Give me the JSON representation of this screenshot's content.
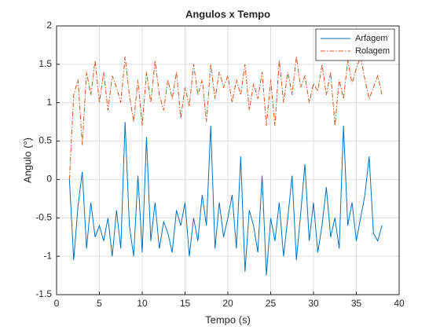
{
  "chart_data": {
    "type": "line",
    "title": "Angulos x Tempo",
    "x_label": "Tempo (s)",
    "y_label": "Angulo (°)",
    "x": [
      1.5,
      2,
      2.5,
      3,
      3.5,
      4,
      4.5,
      5,
      5.5,
      6,
      6.5,
      7,
      7.5,
      8,
      8.5,
      9,
      9.5,
      10,
      10.5,
      11,
      11.5,
      12,
      12.5,
      13,
      13.5,
      14,
      14.5,
      15,
      15.5,
      16,
      16.5,
      17,
      17.5,
      18,
      18.5,
      19,
      19.5,
      20,
      20.5,
      21,
      21.5,
      22,
      22.5,
      23,
      23.5,
      24,
      24.5,
      25,
      25.5,
      26,
      26.5,
      27,
      27.5,
      28,
      28.5,
      29,
      29.5,
      30,
      30.5,
      31,
      31.5,
      32,
      32.5,
      33,
      33.5,
      34,
      34.5,
      35,
      35.5,
      36,
      36.5,
      37,
      37.5,
      38
    ],
    "series": [
      {
        "name": "Arfagem",
        "color": "#0072bd",
        "linestyle": "-",
        "values": [
          0,
          -1.05,
          -0.35,
          0.1,
          -0.9,
          -0.3,
          -0.75,
          -0.6,
          -0.8,
          -0.5,
          -1.0,
          -0.4,
          -0.9,
          0.75,
          -0.6,
          -1.0,
          0.05,
          -0.95,
          0.55,
          -0.8,
          -0.3,
          -0.9,
          -0.55,
          -0.7,
          -0.95,
          -0.4,
          -0.6,
          -0.3,
          -1.0,
          -0.5,
          -0.8,
          -0.2,
          -0.6,
          0.7,
          -0.9,
          -0.3,
          -0.75,
          -0.5,
          -0.2,
          -0.9,
          0.3,
          -1.2,
          -0.4,
          -0.6,
          -0.95,
          0.05,
          -1.25,
          -0.5,
          -0.8,
          -0.3,
          -1.0,
          -0.5,
          0.05,
          -1.05,
          -0.45,
          0.2,
          -0.8,
          -0.3,
          -0.95,
          -0.6,
          -0.1,
          -0.75,
          -0.5,
          -0.9,
          0.7,
          -0.6,
          -0.3,
          -0.8,
          -0.5,
          -0.2,
          0.3,
          -0.7,
          -0.8,
          -0.6
        ]
      },
      {
        "name": "Rolagem",
        "color": "#d95319",
        "linestyle": "-.",
        "values": [
          0,
          1.1,
          1.3,
          0.45,
          1.4,
          1.1,
          1.55,
          1.0,
          1.4,
          0.9,
          1.35,
          1.2,
          1.0,
          1.6,
          1.1,
          0.75,
          1.3,
          0.7,
          1.4,
          1.0,
          1.55,
          1.1,
          0.9,
          1.3,
          1.05,
          1.4,
          0.8,
          1.2,
          0.95,
          1.5,
          1.1,
          1.3,
          0.75,
          1.5,
          1.05,
          1.4,
          1.2,
          1.35,
          1.0,
          1.3,
          1.1,
          1.5,
          0.9,
          1.25,
          1.05,
          1.4,
          0.7,
          1.3,
          0.7,
          1.55,
          1.0,
          1.4,
          1.1,
          1.6,
          1.2,
          1.35,
          1.0,
          1.25,
          1.15,
          1.5,
          1.1,
          1.4,
          0.7,
          1.3,
          1.05,
          1.55,
          1.25,
          1.45,
          1.6,
          1.3,
          1.05,
          1.2,
          1.35,
          1.1
        ]
      }
    ],
    "xlim": [
      0,
      40
    ],
    "xticks": [
      0,
      5,
      10,
      15,
      20,
      25,
      30,
      35,
      40
    ],
    "ylim": [
      -1.5,
      2
    ],
    "yticks": [
      -1.5,
      -1,
      -0.5,
      0,
      0.5,
      1,
      1.5,
      2
    ],
    "grid": true,
    "legend": "northeast"
  }
}
